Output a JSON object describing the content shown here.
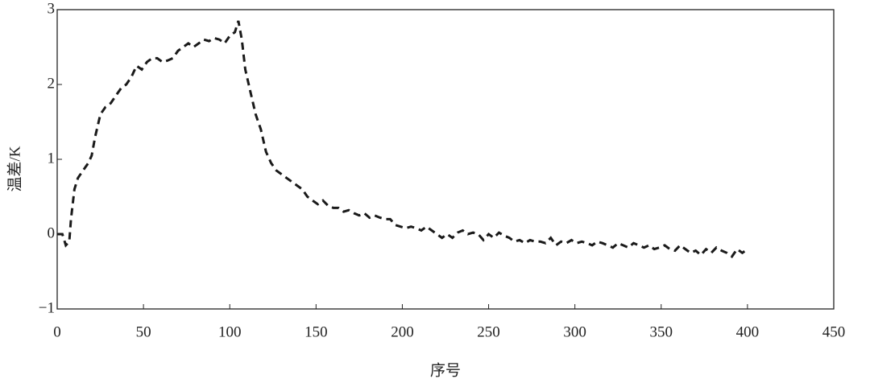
{
  "chart_data": {
    "type": "line",
    "xlabel": "序号",
    "ylabel": "温差/K",
    "xlim": [
      0,
      450
    ],
    "ylim": [
      -1,
      3
    ],
    "xticks": [
      0,
      50,
      100,
      150,
      200,
      250,
      300,
      350,
      400,
      450
    ],
    "yticks": [
      {
        "value": -1,
        "label": "−1"
      },
      0,
      1,
      2,
      3
    ],
    "line_style": "dashed",
    "series": [
      {
        "color": "#1a1a1a",
        "x": [
          0,
          3,
          5,
          7,
          8,
          10,
          12,
          15,
          18,
          20,
          22,
          25,
          28,
          31,
          34,
          37,
          40,
          43,
          46,
          49,
          52,
          55,
          58,
          61,
          64,
          67,
          70,
          73,
          76,
          79,
          82,
          85,
          88,
          91,
          94,
          97,
          100,
          103,
          105,
          107,
          109,
          112,
          115,
          118,
          121,
          124,
          127,
          130,
          133,
          136,
          139,
          142,
          145,
          148,
          151,
          154,
          157,
          160,
          163,
          166,
          169,
          172,
          175,
          178,
          181,
          184,
          187,
          190,
          193,
          196,
          199,
          202,
          205,
          208,
          211,
          214,
          217,
          220,
          223,
          226,
          229,
          232,
          235,
          238,
          241,
          244,
          247,
          250,
          253,
          256,
          259,
          262,
          265,
          268,
          271,
          274,
          277,
          280,
          283,
          286,
          289,
          292,
          295,
          298,
          301,
          304,
          307,
          310,
          313,
          316,
          319,
          322,
          325,
          328,
          331,
          334,
          337,
          340,
          343,
          346,
          349,
          352,
          355,
          358,
          361,
          364,
          367,
          370,
          373,
          376,
          379,
          382,
          385,
          388,
          391,
          394,
          397,
          400
        ],
        "values": [
          0,
          0,
          -0.15,
          -0.1,
          0.2,
          0.6,
          0.75,
          0.85,
          0.95,
          1.05,
          1.3,
          1.6,
          1.7,
          1.75,
          1.85,
          1.95,
          2.0,
          2.1,
          2.25,
          2.2,
          2.3,
          2.35,
          2.35,
          2.3,
          2.32,
          2.35,
          2.45,
          2.5,
          2.55,
          2.5,
          2.55,
          2.6,
          2.58,
          2.62,
          2.6,
          2.55,
          2.65,
          2.7,
          2.85,
          2.6,
          2.2,
          1.9,
          1.6,
          1.4,
          1.1,
          0.95,
          0.85,
          0.8,
          0.75,
          0.7,
          0.65,
          0.6,
          0.5,
          0.45,
          0.4,
          0.45,
          0.38,
          0.35,
          0.35,
          0.3,
          0.32,
          0.28,
          0.25,
          0.28,
          0.22,
          0.25,
          0.22,
          0.2,
          0.2,
          0.12,
          0.1,
          0.08,
          0.1,
          0.08,
          0.05,
          0.1,
          0.05,
          0,
          -0.05,
          0,
          -0.05,
          0.02,
          0.05,
          0,
          0.02,
          0,
          -0.08,
          0,
          -0.05,
          0.02,
          -0.02,
          -0.05,
          -0.1,
          -0.08,
          -0.12,
          -0.08,
          -0.1,
          -0.1,
          -0.12,
          -0.05,
          -0.15,
          -0.1,
          -0.12,
          -0.08,
          -0.12,
          -0.1,
          -0.12,
          -0.15,
          -0.1,
          -0.12,
          -0.15,
          -0.18,
          -0.12,
          -0.15,
          -0.18,
          -0.12,
          -0.15,
          -0.18,
          -0.15,
          -0.2,
          -0.18,
          -0.15,
          -0.2,
          -0.22,
          -0.15,
          -0.2,
          -0.25,
          -0.22,
          -0.28,
          -0.2,
          -0.25,
          -0.18,
          -0.22,
          -0.25,
          -0.3,
          -0.2,
          -0.25,
          -0.2
        ]
      }
    ]
  }
}
